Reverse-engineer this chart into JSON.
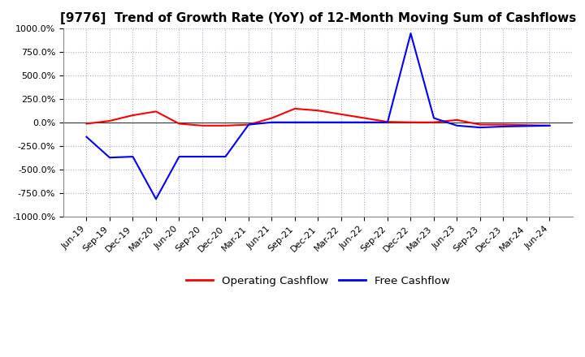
{
  "title": "[9776]  Trend of Growth Rate (YoY) of 12-Month Moving Sum of Cashflows",
  "title_fontsize": 11,
  "ylim": [
    -1000,
    1000
  ],
  "yticks": [
    1000,
    750,
    500,
    250,
    0,
    -250,
    -500,
    -750,
    -1000
  ],
  "ytick_labels": [
    "1000.0%",
    "750.0%",
    "500.0%",
    "250.0%",
    "0.0%",
    "-250.0%",
    "-500.0%",
    "-750.0%",
    "-1000.0%"
  ],
  "grid_color": "#aaaacc",
  "grid_style": "dotted",
  "background_color": "#ffffff",
  "plot_bg_color": "#ffffff",
  "legend_labels": [
    "Operating Cashflow",
    "Free Cashflow"
  ],
  "legend_colors": [
    "red",
    "blue"
  ],
  "x_labels": [
    "Jun-19",
    "Sep-19",
    "Dec-19",
    "Mar-20",
    "Jun-20",
    "Sep-20",
    "Dec-20",
    "Mar-21",
    "Jun-21",
    "Sep-21",
    "Dec-21",
    "Mar-22",
    "Jun-22",
    "Sep-22",
    "Dec-22",
    "Mar-23",
    "Jun-23",
    "Sep-23",
    "Dec-23",
    "Mar-24",
    "Jun-24"
  ],
  "operating_cashflow": [
    -10,
    20,
    80,
    120,
    -10,
    -30,
    -30,
    -20,
    50,
    150,
    130,
    90,
    50,
    10,
    5,
    5,
    30,
    -20,
    -20,
    -25,
    -30
  ],
  "free_cashflow": [
    -150,
    -370,
    -360,
    -810,
    -360,
    -360,
    -360,
    -20,
    5,
    5,
    5,
    5,
    5,
    5,
    950,
    50,
    -30,
    -50,
    -40,
    -35,
    -30
  ]
}
